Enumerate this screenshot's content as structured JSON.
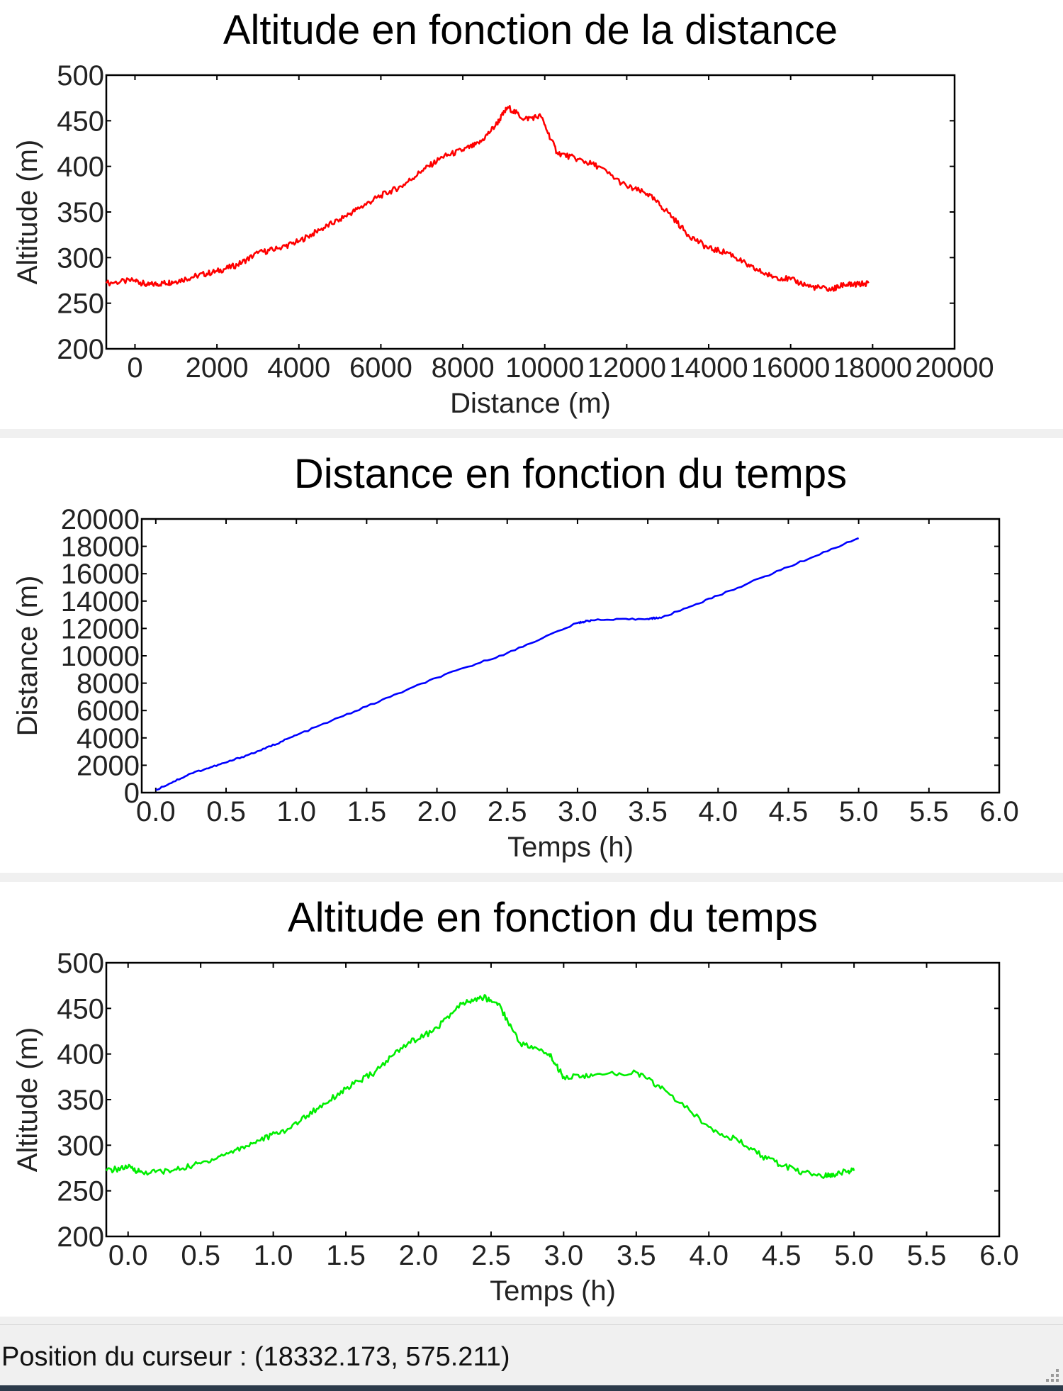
{
  "status_bar": {
    "cursor_text": "Position du curseur : (18332.173, 575.211)"
  },
  "colors": {
    "series_1": "#ff0000",
    "series_2": "#0000ff",
    "series_3": "#00ee00",
    "axes": "#000000",
    "background": "#ffffff"
  },
  "chart_data": [
    {
      "id": "chart1",
      "type": "line",
      "title": "Altitude en fonction de la distance",
      "xlabel": "Distance (m)",
      "ylabel": "Altitude (m)",
      "xlim": [
        -700,
        20000
      ],
      "ylim": [
        200,
        500
      ],
      "xticks": [
        0,
        2000,
        4000,
        6000,
        8000,
        10000,
        12000,
        14000,
        16000,
        18000,
        20000
      ],
      "xtick_labels": [
        "0",
        "2000",
        "4000",
        "6000",
        "8000",
        "10000",
        "12000",
        "14000",
        "16000",
        "18000",
        "20000"
      ],
      "yticks": [
        200,
        250,
        300,
        350,
        400,
        450,
        500
      ],
      "ytick_labels": [
        "200",
        "250",
        "300",
        "350",
        "400",
        "450",
        "500"
      ],
      "grid": false,
      "color": "#ff0000",
      "series": [
        {
          "x": [
            -700,
            0,
            300,
            700,
            1000,
            1500,
            2000,
            2500,
            3000,
            3500,
            4000,
            4500,
            5000,
            5500,
            6000,
            6500,
            7000,
            7500,
            8000,
            8400,
            8800,
            9100,
            9500,
            9900,
            10300,
            10800,
            11300,
            12000,
            12500,
            13000,
            13500,
            14000,
            14500,
            15000,
            15500,
            16000,
            16500,
            17000,
            17300,
            17500,
            17900
          ],
          "y": [
            272,
            275,
            270,
            272,
            274,
            280,
            285,
            292,
            305,
            310,
            318,
            330,
            342,
            355,
            368,
            378,
            395,
            410,
            418,
            425,
            445,
            465,
            452,
            455,
            415,
            408,
            400,
            378,
            370,
            350,
            325,
            310,
            305,
            290,
            280,
            276,
            268,
            265,
            270,
            270,
            272
          ]
        }
      ]
    },
    {
      "id": "chart2",
      "type": "line",
      "title": "Distance en fonction du temps",
      "xlabel": "Temps (h)",
      "ylabel": "Distance (m)",
      "xlim": [
        -0.1,
        6.0
      ],
      "ylim": [
        0,
        20000
      ],
      "xticks": [
        0.0,
        0.5,
        1.0,
        1.5,
        2.0,
        2.5,
        3.0,
        3.5,
        4.0,
        4.5,
        5.0,
        5.5,
        6.0
      ],
      "xtick_labels": [
        "0.0",
        "0.5",
        "1.0",
        "1.5",
        "2.0",
        "2.5",
        "3.0",
        "3.5",
        "4.0",
        "4.5",
        "5.0",
        "5.5",
        "6.0"
      ],
      "yticks": [
        0,
        2000,
        4000,
        6000,
        8000,
        10000,
        12000,
        14000,
        16000,
        18000,
        20000
      ],
      "ytick_labels": [
        "0",
        "2000",
        "4000",
        "6000",
        "8000",
        "10000",
        "12000",
        "14000",
        "16000",
        "18000",
        "20000"
      ],
      "grid": false,
      "color": "#0000ff",
      "series": [
        {
          "x": [
            0.0,
            0.25,
            0.5,
            0.75,
            1.0,
            1.5,
            2.0,
            2.5,
            3.0,
            3.1,
            3.5,
            3.6,
            4.0,
            4.5,
            5.0
          ],
          "y": [
            200,
            1400,
            2200,
            3100,
            4200,
            6300,
            8400,
            10200,
            12400,
            12600,
            12700,
            12800,
            14400,
            16500,
            18600
          ]
        }
      ]
    },
    {
      "id": "chart3",
      "type": "line",
      "title": "Altitude en fonction du temps",
      "xlabel": "Temps (h)",
      "ylabel": "Altitude (m)",
      "xlim": [
        -0.15,
        6.0
      ],
      "ylim": [
        200,
        500
      ],
      "xticks": [
        0.0,
        0.5,
        1.0,
        1.5,
        2.0,
        2.5,
        3.0,
        3.5,
        4.0,
        4.5,
        5.0,
        5.5,
        6.0
      ],
      "xtick_labels": [
        "0.0",
        "0.5",
        "1.0",
        "1.5",
        "2.0",
        "2.5",
        "3.0",
        "3.5",
        "4.0",
        "4.5",
        "5.0",
        "5.5",
        "6.0"
      ],
      "yticks": [
        200,
        250,
        300,
        350,
        400,
        450,
        500
      ],
      "ytick_labels": [
        "200",
        "250",
        "300",
        "350",
        "400",
        "450",
        "500"
      ],
      "grid": false,
      "color": "#00ee00",
      "series": [
        {
          "x": [
            -0.15,
            0.0,
            0.1,
            0.3,
            0.5,
            0.7,
            0.9,
            1.1,
            1.3,
            1.5,
            1.7,
            1.9,
            2.1,
            2.3,
            2.45,
            2.55,
            2.7,
            2.9,
            3.0,
            3.2,
            3.5,
            3.7,
            4.0,
            4.2,
            4.4,
            4.6,
            4.8,
            4.9,
            5.0
          ],
          "y": [
            272,
            276,
            270,
            272,
            280,
            292,
            305,
            318,
            340,
            362,
            380,
            410,
            425,
            455,
            462,
            455,
            412,
            400,
            375,
            376,
            380,
            360,
            320,
            305,
            285,
            272,
            266,
            270,
            272
          ]
        }
      ]
    }
  ]
}
